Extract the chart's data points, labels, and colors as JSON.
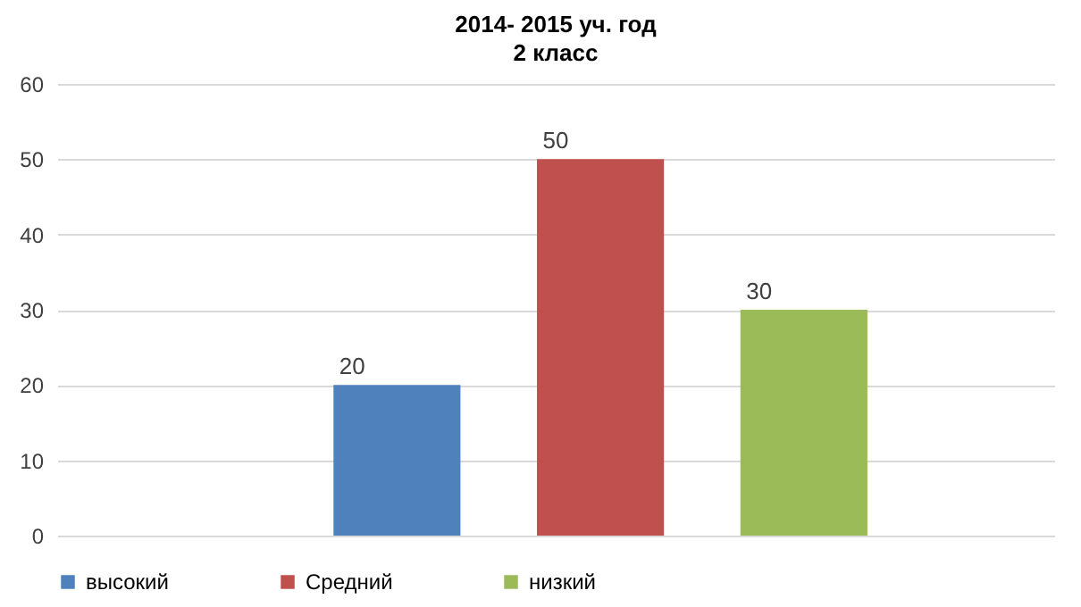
{
  "chart_data": {
    "type": "bar",
    "title": "2014- 2015 уч. год",
    "subtitle": "2 класс",
    "categories": [
      null
    ],
    "series": [
      {
        "name": "высокий",
        "color": "#4f81bd",
        "values": [
          20
        ]
      },
      {
        "name": "Средний",
        "color": "#c0504d",
        "values": [
          50
        ]
      },
      {
        "name": "низкий",
        "color": "#9bbb59",
        "values": [
          30
        ]
      }
    ],
    "ylim": [
      0,
      60
    ],
    "yticks": [
      0,
      10,
      20,
      30,
      40,
      50,
      60
    ],
    "grid": "y",
    "legend": "bottom",
    "data_labels": true
  }
}
